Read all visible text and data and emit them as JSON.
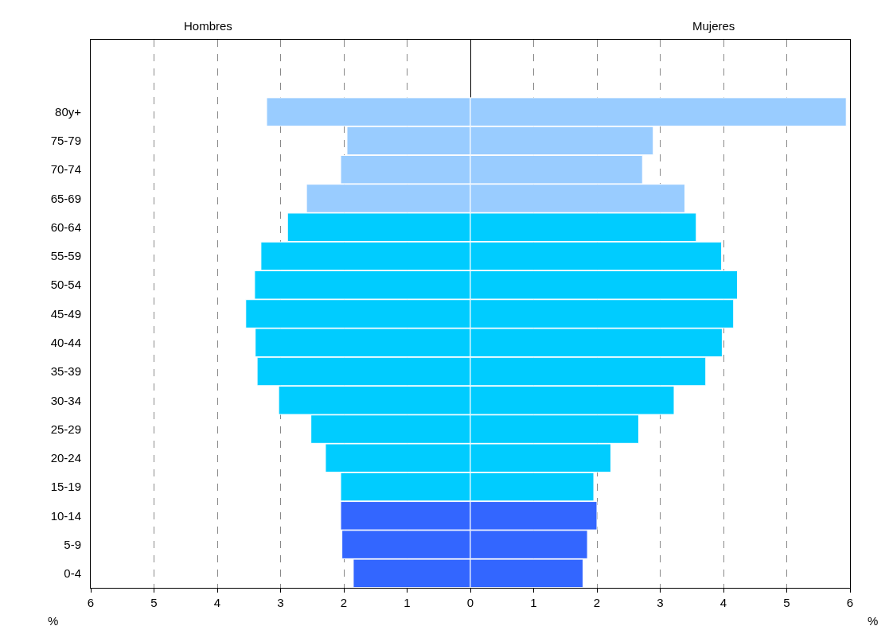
{
  "chart_data": {
    "type": "bar",
    "orientation": "horizontal",
    "categories": [
      "80y+",
      "75-79",
      "70-74",
      "65-69",
      "60-64",
      "55-59",
      "50-54",
      "45-49",
      "40-44",
      "35-39",
      "30-34",
      "25-29",
      "20-24",
      "15-19",
      "10-14",
      "5-9",
      "0-4"
    ],
    "series": [
      {
        "values": [
          -3.22,
          -1.95,
          -2.05,
          -2.59,
          -2.89,
          -3.31,
          -3.41,
          -3.55,
          -3.4,
          -3.37,
          -3.03,
          -2.52,
          -2.29,
          -2.05,
          -2.05,
          -2.03,
          -1.85
        ],
        "colors": [
          "#99ccff",
          "#99ccff",
          "#99ccff",
          "#99ccff",
          "#00ccff",
          "#00ccff",
          "#00ccff",
          "#00ccff",
          "#00ccff",
          "#00ccff",
          "#00ccff",
          "#00ccff",
          "#00ccff",
          "#00ccff",
          "#3366ff",
          "#3366ff",
          "#3366ff"
        ]
      },
      {
        "values": [
          5.94,
          2.89,
          2.72,
          3.39,
          3.57,
          3.97,
          4.22,
          4.16,
          3.98,
          3.72,
          3.22,
          2.66,
          2.22,
          1.95,
          2.0,
          1.85,
          1.78
        ],
        "colors": [
          "#99ccff",
          "#99ccff",
          "#99ccff",
          "#99ccff",
          "#00ccff",
          "#00ccff",
          "#00ccff",
          "#00ccff",
          "#00ccff",
          "#00ccff",
          "#00ccff",
          "#00ccff",
          "#00ccff",
          "#00ccff",
          "#3366ff",
          "#3366ff",
          "#3366ff"
        ]
      }
    ],
    "xlim": [
      -6,
      6
    ],
    "xticks": [
      {
        "value": -6,
        "label": "6"
      },
      {
        "value": -5,
        "label": "5"
      },
      {
        "value": -4,
        "label": "4"
      },
      {
        "value": -3,
        "label": "3"
      },
      {
        "value": -2,
        "label": "2"
      },
      {
        "value": -1,
        "label": "1"
      },
      0,
      1,
      2,
      3,
      4,
      5,
      6
    ],
    "annotations": [
      "Hombres",
      "Mujeres",
      "%",
      "%"
    ],
    "stacked": true,
    "grid": "x",
    "legend": false
  }
}
